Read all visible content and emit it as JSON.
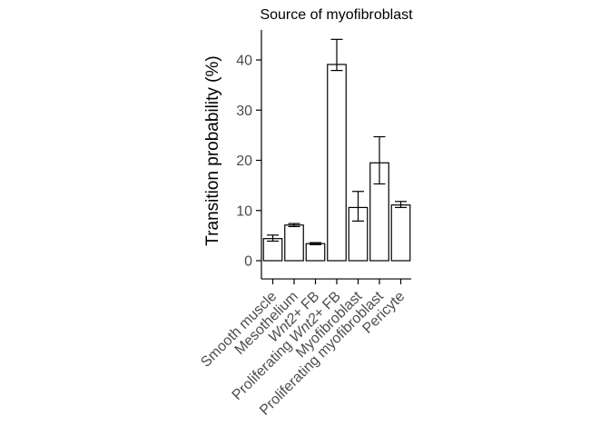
{
  "chart_data": {
    "type": "bar",
    "title": "Source of myofibroblast",
    "xlabel": "",
    "ylabel": "Transition probability (%)",
    "ylim": [
      -2,
      46
    ],
    "yticks": [
      0,
      10,
      20,
      30,
      40
    ],
    "categories": [
      {
        "parts": [
          {
            "t": "Smooth muscle",
            "i": false
          }
        ]
      },
      {
        "parts": [
          {
            "t": "Mesothelium",
            "i": false
          }
        ]
      },
      {
        "parts": [
          {
            "t": "Wnt2",
            "i": true
          },
          {
            "t": "+ FB",
            "i": false
          }
        ]
      },
      {
        "parts": [
          {
            "t": "Proliferating ",
            "i": false
          },
          {
            "t": "Wnt2",
            "i": true
          },
          {
            "t": "+ FB",
            "i": false
          }
        ]
      },
      {
        "parts": [
          {
            "t": "Myofibroblast",
            "i": false
          }
        ]
      },
      {
        "parts": [
          {
            "t": "Proliferating myofibroblast",
            "i": false
          }
        ]
      },
      {
        "parts": [
          {
            "t": "Pericyte",
            "i": false
          }
        ]
      }
    ],
    "values": [
      4.4,
      7.1,
      3.4,
      39.1,
      10.6,
      19.5,
      11.1
    ],
    "error_low": [
      3.9,
      6.8,
      3.2,
      37.9,
      7.9,
      15.3,
      10.6
    ],
    "error_high": [
      5.1,
      7.4,
      3.6,
      44.1,
      13.8,
      24.7,
      11.8
    ],
    "grid": false,
    "legend": "none"
  }
}
